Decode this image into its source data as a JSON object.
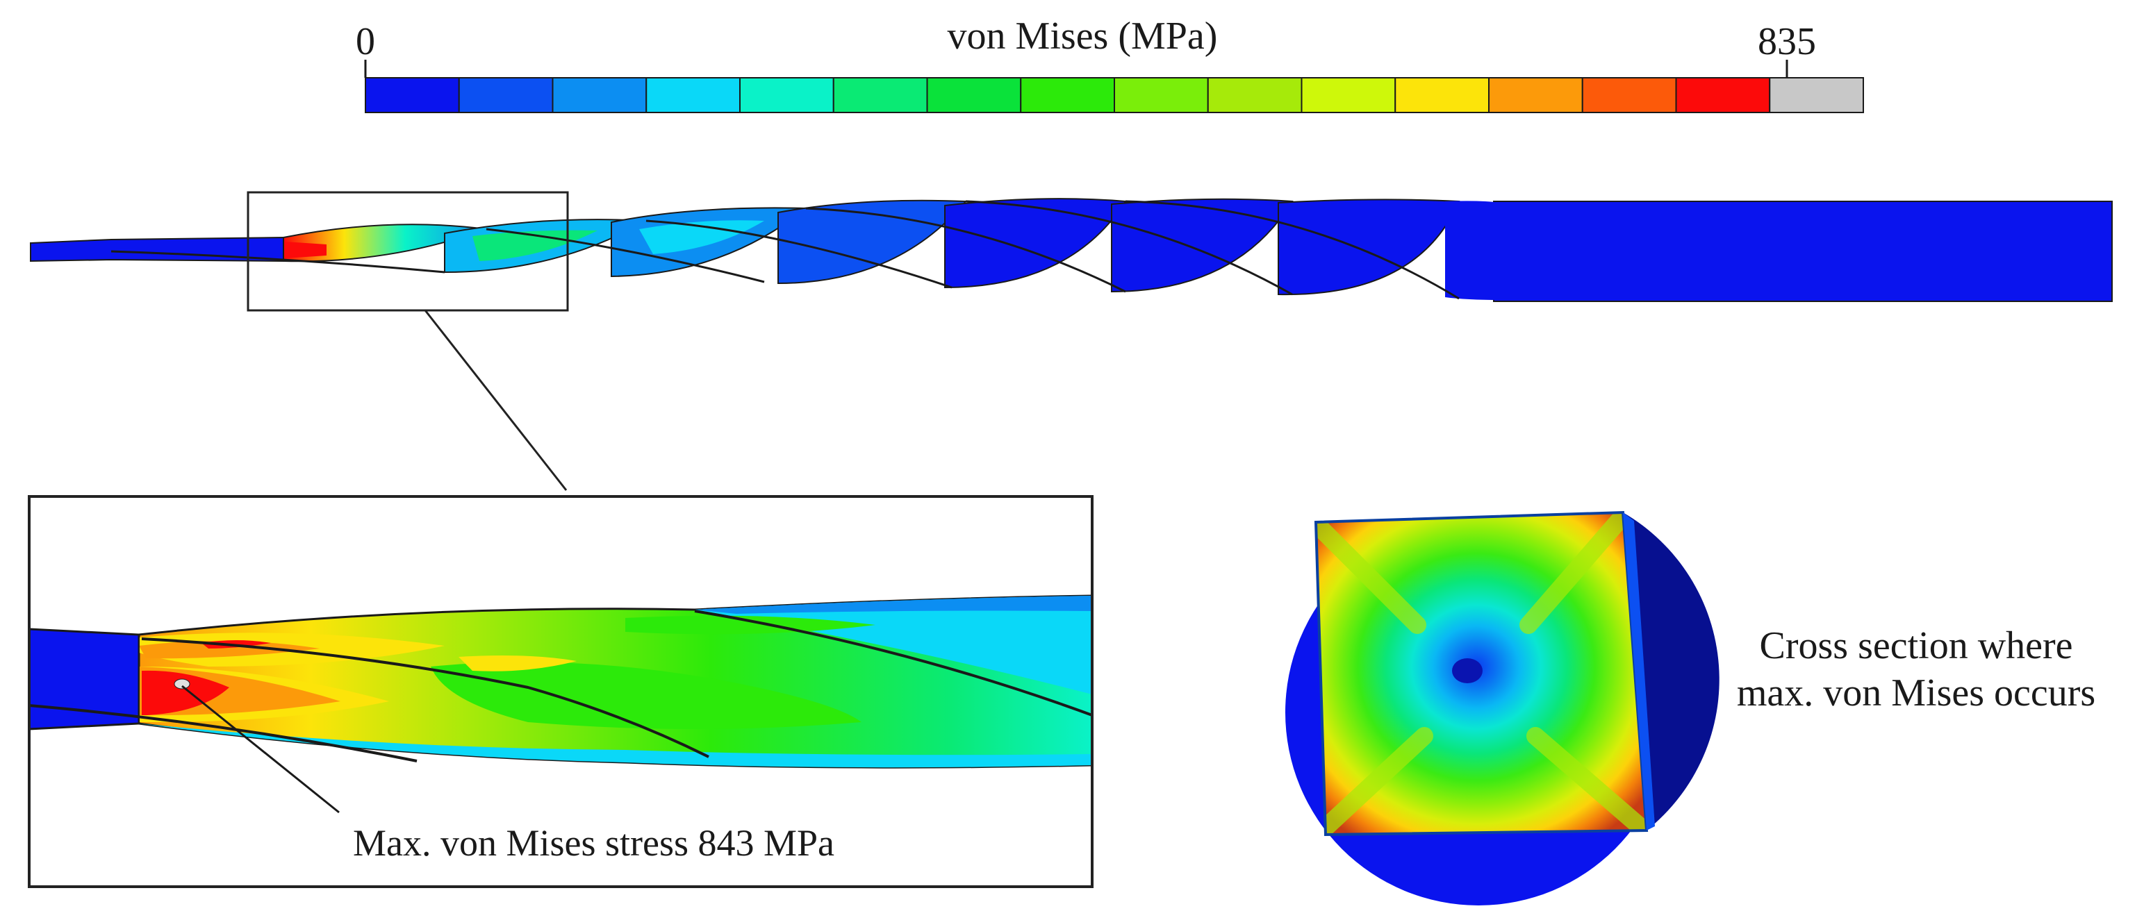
{
  "colorbar": {
    "title": "von Mises (MPa)",
    "min_label": "0",
    "max_label": "835",
    "colors": [
      "#0a14ee",
      "#0c50f2",
      "#0c8ef2",
      "#0ad8f8",
      "#0af2c8",
      "#0aea74",
      "#0ae23a",
      "#2cea0a",
      "#7aee0a",
      "#a6ea0a",
      "#cef80a",
      "#fce40a",
      "#fc9a0a",
      "#fc5a0a",
      "#fc0a0a",
      "#c8c8c8"
    ]
  },
  "annotations": {
    "max_stress": "Max. von Mises stress 843 MPa",
    "cross_section_line1": "Cross section where",
    "cross_section_line2": "max. von Mises occurs"
  },
  "palette": {
    "outline": "#1a1a1a",
    "frame": "#222222",
    "body_blue": "#0a14ee"
  }
}
